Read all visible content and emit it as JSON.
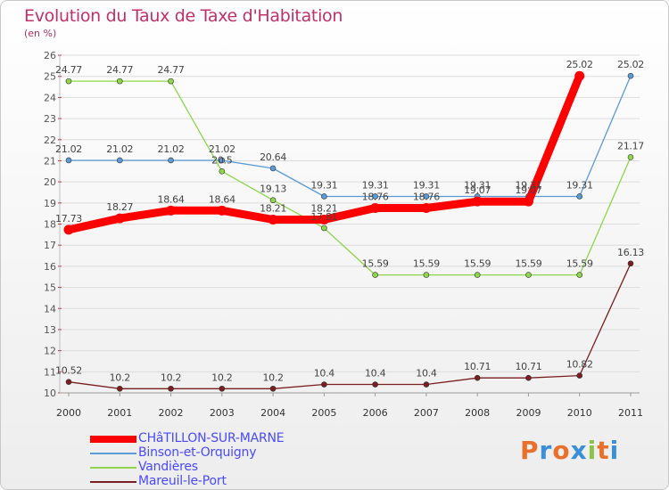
{
  "title": "Evolution du Taux de Taxe d'Habitation",
  "subtitle": "(en %)",
  "brand": {
    "text": "Proxiti",
    "colors": [
      "#e8702a",
      "#3b8fd9",
      "#e8702a",
      "#3b8fd9",
      "#8bc34a",
      "#e8702a",
      "#3b8fd9"
    ]
  },
  "chart_data": {
    "type": "line",
    "title": "Evolution du Taux de Taxe d'Habitation",
    "subtitle": "(en %)",
    "xlabel": "",
    "ylabel": "",
    "x": [
      "2000",
      "2001",
      "2002",
      "2003",
      "2004",
      "2005",
      "2006",
      "2007",
      "2008",
      "2009",
      "2010",
      "2011"
    ],
    "ylim": [
      10,
      26
    ],
    "yticks": [
      10,
      11,
      12,
      13,
      14,
      15,
      16,
      17,
      18,
      19,
      20,
      21,
      22,
      23,
      24,
      25,
      26
    ],
    "grid": true,
    "legend_position": "bottom-left",
    "series": [
      {
        "name": "CHâTILLON-SUR-MARNE",
        "color": "#ff0000",
        "thick": true,
        "values": [
          17.73,
          18.27,
          18.64,
          18.64,
          18.21,
          18.21,
          18.76,
          18.76,
          19.07,
          19.07,
          25.02,
          null
        ],
        "labels": [
          "17.73",
          "18.27",
          "18.64",
          "18.64",
          "18.21",
          "18.21",
          "18.76",
          "18.76",
          "19.07",
          "19.07",
          "25.02",
          ""
        ]
      },
      {
        "name": "Binson-et-Orquigny",
        "color": "#5b9bd5",
        "values": [
          21.02,
          21.02,
          21.02,
          21.02,
          20.64,
          19.31,
          19.31,
          19.31,
          19.31,
          19.31,
          19.31,
          25.02
        ],
        "labels": [
          "21.02",
          "21.02",
          "21.02",
          "21.02",
          "20.64",
          "19.31",
          "19.31",
          "19.31",
          "19.31",
          "19.31",
          "19.31",
          "25.02"
        ]
      },
      {
        "name": "Vandières",
        "color": "#8ed64a",
        "values": [
          24.77,
          24.77,
          24.77,
          20.5,
          19.13,
          17.81,
          15.59,
          15.59,
          15.59,
          15.59,
          15.59,
          21.17
        ],
        "labels": [
          "24.77",
          "24.77",
          "24.77",
          "20.5",
          "19.13",
          "17.81",
          "15.59",
          "15.59",
          "15.59",
          "15.59",
          "15.59",
          "21.17"
        ]
      },
      {
        "name": "Mareuil-le-Port",
        "color": "#7a1f1f",
        "values": [
          10.52,
          10.2,
          10.2,
          10.2,
          10.2,
          10.4,
          10.4,
          10.4,
          10.71,
          10.71,
          10.82,
          16.13
        ],
        "labels": [
          "10.52",
          "10.2",
          "10.2",
          "10.2",
          "10.2",
          "10.4",
          "10.4",
          "10.4",
          "10.71",
          "10.71",
          "10.82",
          "16.13"
        ]
      }
    ]
  }
}
